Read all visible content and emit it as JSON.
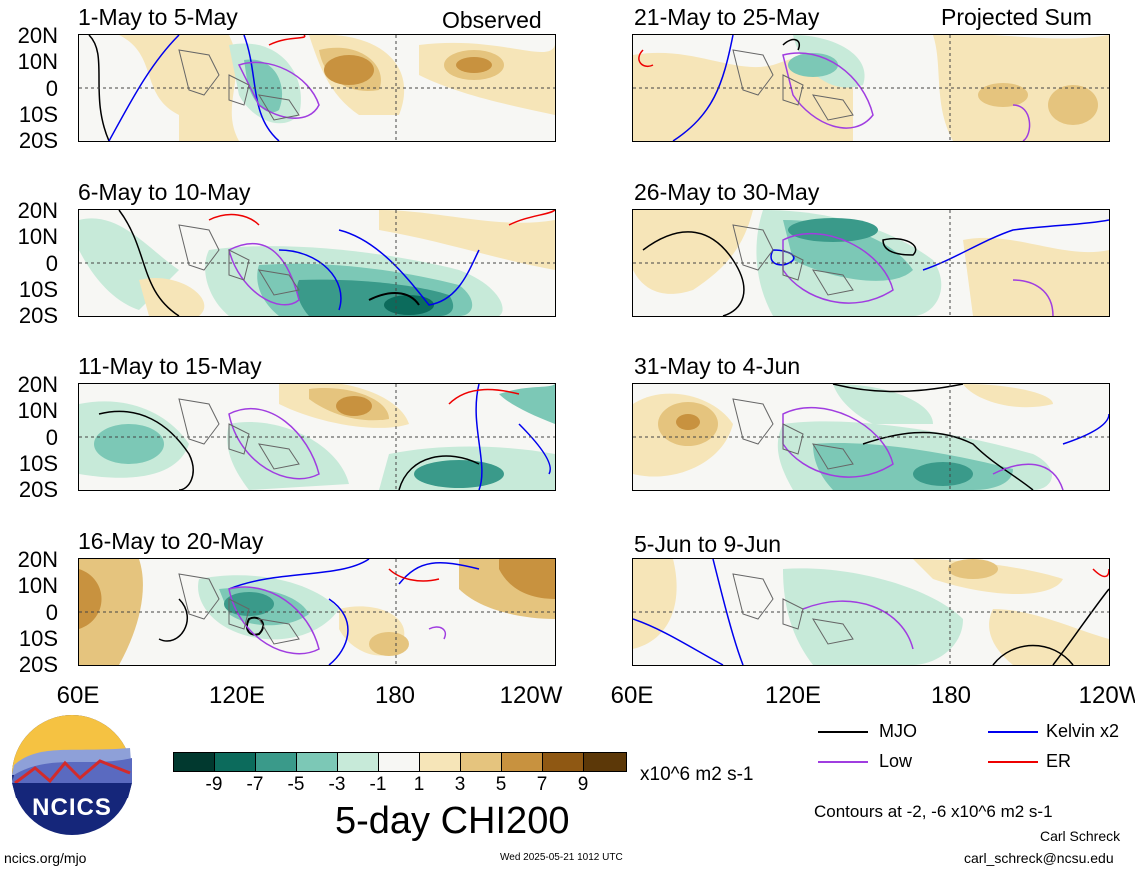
{
  "panels_left": [
    {
      "title": "1-May to 5-May",
      "tag": "Observed"
    },
    {
      "title": "6-May to 10-May",
      "tag": ""
    },
    {
      "title": "11-May to 15-May",
      "tag": ""
    },
    {
      "title": "16-May to 20-May",
      "tag": ""
    }
  ],
  "panels_right": [
    {
      "title": "21-May to 25-May",
      "tag": "Projected Sum"
    },
    {
      "title": "26-May to 30-May",
      "tag": ""
    },
    {
      "title": "31-May to 4-Jun",
      "tag": ""
    },
    {
      "title": "5-Jun to 9-Jun",
      "tag": ""
    }
  ],
  "y_labels": [
    "20N",
    "10N",
    "0",
    "10S",
    "20S"
  ],
  "x_labels": [
    "60E",
    "120E",
    "180",
    "120W"
  ],
  "colorbar": {
    "ticks": [
      "-9",
      "-7",
      "-5",
      "-3",
      "-1",
      "1",
      "3",
      "5",
      "7",
      "9"
    ],
    "units": "x10^6 m2 s-1",
    "colors": [
      "#01392f",
      "#0c6b5c",
      "#3a9a8a",
      "#7cc8b6",
      "#c7ead9",
      "#f7f7f4",
      "#f6e5b8",
      "#e5c47e",
      "#c8923f",
      "#8f5813",
      "#5c3808"
    ]
  },
  "title": "5-day CHI200",
  "legend": {
    "mjo": "MJO",
    "kelvin": "Kelvin x2",
    "low": "Low",
    "er": "ER",
    "colors": {
      "mjo": "#000000",
      "kelvin": "#0000ee",
      "low": "#a03de0",
      "er": "#ee0000"
    }
  },
  "contours_note": "Contours at -2, -6 x10^6 m2 s-1",
  "author": "Carl Schreck",
  "email": "carl_schreck@ncsu.edu",
  "site": "ncics.org/mjo",
  "timestamp": "Wed 2025-05-21 1012 UTC",
  "logo_text": "NCICS"
}
